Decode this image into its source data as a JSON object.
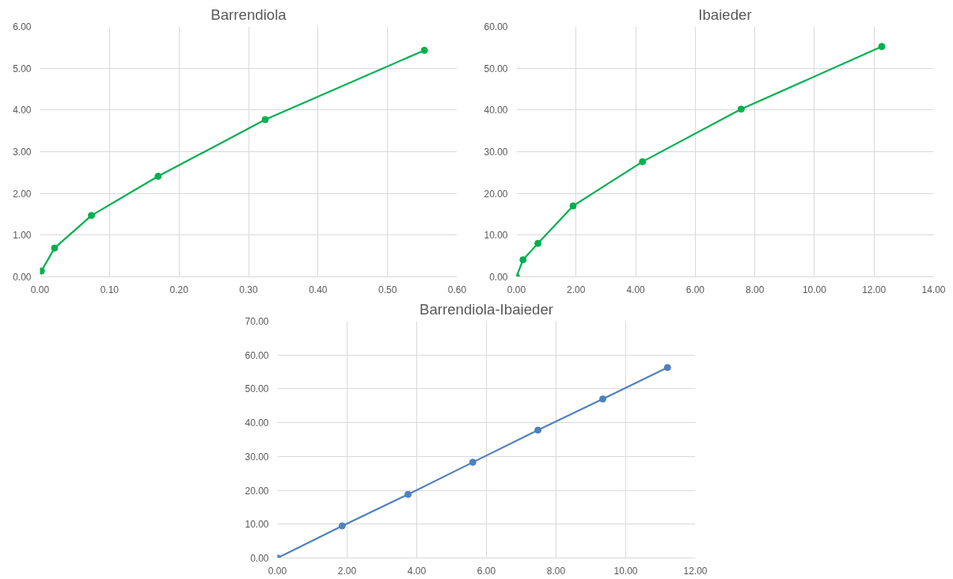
{
  "chart_data": [
    {
      "type": "line",
      "title": "Barrendiola",
      "marker": "circle",
      "line_style": "solid",
      "grid": true,
      "series": [
        {
          "color": "#00b050",
          "x": [
            0.002,
            0.021,
            0.074,
            0.17,
            0.324,
            0.553
          ],
          "values": [
            0.14,
            0.69,
            1.47,
            2.41,
            3.77,
            5.43
          ]
        }
      ],
      "xlim": [
        0,
        0.6
      ],
      "xticks": [
        {
          "value": 0,
          "label": "0.00"
        },
        {
          "value": 0.1,
          "label": "0.10"
        },
        {
          "value": 0.2,
          "label": "0.20"
        },
        {
          "value": 0.3,
          "label": "0.30"
        },
        {
          "value": 0.4,
          "label": "0.40"
        },
        {
          "value": 0.5,
          "label": "0.50"
        },
        {
          "value": 0.6,
          "label": "0.60"
        }
      ],
      "ylim": [
        0,
        6
      ],
      "yticks": [
        {
          "value": 0,
          "label": "0.00"
        },
        {
          "value": 1,
          "label": "1.00"
        },
        {
          "value": 2,
          "label": "2.00"
        },
        {
          "value": 3,
          "label": "3.00"
        },
        {
          "value": 4,
          "label": "4.00"
        },
        {
          "value": 5,
          "label": "5.00"
        },
        {
          "value": 6,
          "label": "6.00"
        }
      ]
    },
    {
      "type": "line",
      "title": "Ibaieder",
      "marker": "circle",
      "line_style": "solid",
      "grid": true,
      "series": [
        {
          "color": "#00b050",
          "x": [
            0,
            0.22,
            0.72,
            1.9,
            4.23,
            7.54,
            12.26
          ],
          "values": [
            0,
            4.1,
            8.0,
            17.0,
            27.6,
            40.2,
            55.2
          ]
        }
      ],
      "xlim": [
        0,
        14
      ],
      "xticks": [
        {
          "value": 0,
          "label": "0.00"
        },
        {
          "value": 2,
          "label": "2.00"
        },
        {
          "value": 4,
          "label": "4.00"
        },
        {
          "value": 6,
          "label": "6.00"
        },
        {
          "value": 8,
          "label": "8.00"
        },
        {
          "value": 10,
          "label": "10.00"
        },
        {
          "value": 12,
          "label": "12.00"
        },
        {
          "value": 14,
          "label": "14.00"
        }
      ],
      "ylim": [
        0,
        60
      ],
      "yticks": [
        {
          "value": 0,
          "label": "0.00"
        },
        {
          "value": 10,
          "label": "10.00"
        },
        {
          "value": 20,
          "label": "20.00"
        },
        {
          "value": 30,
          "label": "30.00"
        },
        {
          "value": 40,
          "label": "40.00"
        },
        {
          "value": 50,
          "label": "50.00"
        },
        {
          "value": 60,
          "label": "60.00"
        }
      ]
    },
    {
      "type": "line",
      "title": "Barrendiola-Ibaieder",
      "marker": "circle",
      "line_style": "solid",
      "grid": true,
      "series": [
        {
          "color": "#4f81bd",
          "x": [
            0,
            1.86,
            3.75,
            5.61,
            7.48,
            9.34,
            11.2
          ],
          "values": [
            0,
            9.5,
            18.8,
            28.3,
            37.8,
            47.0,
            56.3
          ]
        }
      ],
      "xlim": [
        0,
        12
      ],
      "xticks": [
        {
          "value": 0,
          "label": "0.00"
        },
        {
          "value": 2,
          "label": "2.00"
        },
        {
          "value": 4,
          "label": "4.00"
        },
        {
          "value": 6,
          "label": "6.00"
        },
        {
          "value": 8,
          "label": "8.00"
        },
        {
          "value": 10,
          "label": "10.00"
        },
        {
          "value": 12,
          "label": "12.00"
        }
      ],
      "ylim": [
        0,
        70
      ],
      "yticks": [
        {
          "value": 0,
          "label": "0.00"
        },
        {
          "value": 10,
          "label": "10.00"
        },
        {
          "value": 20,
          "label": "20.00"
        },
        {
          "value": 30,
          "label": "30.00"
        },
        {
          "value": 40,
          "label": "40.00"
        },
        {
          "value": 50,
          "label": "50.00"
        },
        {
          "value": 60,
          "label": "60.00"
        },
        {
          "value": 70,
          "label": "70.00"
        }
      ]
    }
  ]
}
